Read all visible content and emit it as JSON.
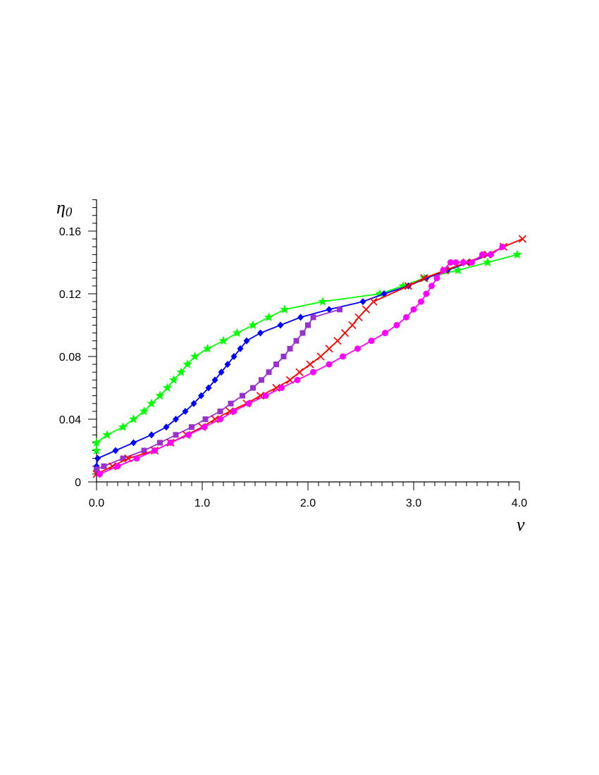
{
  "chart_data": {
    "type": "line",
    "xlabel": "ν",
    "ylabel": "η",
    "ylabel_sub": "0",
    "xlim": [
      0,
      4.0
    ],
    "ylim": [
      0,
      0.16
    ],
    "xticks": [
      {
        "value": 0.0,
        "label": "0.0"
      },
      {
        "value": 1.0,
        "label": "1.0"
      },
      {
        "value": 2.0,
        "label": "2.0"
      },
      {
        "value": 3.0,
        "label": "3.0"
      },
      {
        "value": 4.0,
        "label": "4.0"
      }
    ],
    "yticks": [
      {
        "value": 0,
        "label": "0"
      },
      {
        "value": 0.04,
        "label": "0.04"
      },
      {
        "value": 0.08,
        "label": "0.08"
      },
      {
        "value": 0.12,
        "label": "0.12"
      },
      {
        "value": 0.16,
        "label": "0.16"
      }
    ],
    "grid": false,
    "series": [
      {
        "color": "#00ff00",
        "marker": "star",
        "x": [
          0.0,
          0.0,
          0.1,
          0.25,
          0.35,
          0.45,
          0.52,
          0.6,
          0.67,
          0.73,
          0.8,
          0.86,
          0.93,
          1.05,
          1.2,
          1.33,
          1.48,
          1.63,
          1.78,
          2.14,
          2.68,
          2.9,
          3.1,
          3.42,
          3.7,
          3.98
        ],
        "y": [
          0.02,
          0.025,
          0.03,
          0.035,
          0.04,
          0.045,
          0.05,
          0.055,
          0.06,
          0.065,
          0.07,
          0.075,
          0.08,
          0.085,
          0.09,
          0.095,
          0.1,
          0.105,
          0.11,
          0.115,
          0.12,
          0.125,
          0.13,
          0.135,
          0.14,
          0.145
        ]
      },
      {
        "color": "#0000ff",
        "marker": "diamond",
        "x": [
          0.0,
          0.01,
          0.18,
          0.35,
          0.52,
          0.66,
          0.75,
          0.84,
          0.92,
          0.99,
          1.06,
          1.12,
          1.18,
          1.24,
          1.3,
          1.36,
          1.42,
          1.55,
          1.74,
          1.93,
          2.2,
          2.52,
          2.72,
          2.95,
          3.12,
          3.32,
          3.52,
          3.72
        ],
        "y": [
          0.01,
          0.015,
          0.02,
          0.025,
          0.03,
          0.035,
          0.04,
          0.045,
          0.05,
          0.055,
          0.06,
          0.065,
          0.07,
          0.075,
          0.08,
          0.085,
          0.09,
          0.095,
          0.1,
          0.105,
          0.11,
          0.115,
          0.12,
          0.125,
          0.13,
          0.135,
          0.14,
          0.145
        ]
      },
      {
        "color": "#9932cc",
        "marker": "square",
        "x": [
          0.0,
          0.07,
          0.25,
          0.45,
          0.6,
          0.75,
          0.9,
          1.03,
          1.17,
          1.27,
          1.38,
          1.48,
          1.56,
          1.63,
          1.7,
          1.77,
          1.83,
          1.89,
          1.95,
          2.0,
          2.05,
          2.3
        ],
        "y": [
          0.008,
          0.01,
          0.015,
          0.02,
          0.025,
          0.03,
          0.035,
          0.04,
          0.045,
          0.05,
          0.055,
          0.06,
          0.065,
          0.07,
          0.075,
          0.08,
          0.085,
          0.09,
          0.095,
          0.1,
          0.105,
          0.11
        ]
      },
      {
        "color": "#ff0000",
        "marker": "cross",
        "x": [
          0.0,
          0.15,
          0.3,
          0.55,
          0.7,
          0.85,
          1.0,
          1.12,
          1.26,
          1.42,
          1.55,
          1.7,
          1.83,
          1.92,
          2.02,
          2.12,
          2.2,
          2.28,
          2.35,
          2.42,
          2.48,
          2.55,
          2.62,
          2.95,
          3.1,
          3.3,
          3.5,
          3.7,
          3.85,
          4.03
        ],
        "y": [
          0.005,
          0.01,
          0.015,
          0.02,
          0.025,
          0.03,
          0.035,
          0.04,
          0.045,
          0.05,
          0.055,
          0.06,
          0.065,
          0.07,
          0.075,
          0.08,
          0.085,
          0.09,
          0.095,
          0.1,
          0.105,
          0.11,
          0.115,
          0.125,
          0.13,
          0.135,
          0.14,
          0.145,
          0.15,
          0.155
        ]
      },
      {
        "color": "#ff00ff",
        "marker": "circle",
        "x": [
          0.03,
          0.2,
          0.38,
          0.55,
          0.7,
          0.87,
          1.02,
          1.17,
          1.3,
          1.44,
          1.6,
          1.75,
          1.9,
          2.05,
          2.2,
          2.33,
          2.47,
          2.6,
          2.73,
          2.84,
          2.93,
          3.0,
          3.07,
          3.12,
          3.17,
          3.22,
          3.28,
          3.35,
          3.4,
          3.47,
          3.55,
          3.65,
          3.73,
          3.84
        ],
        "y": [
          0.005,
          0.01,
          0.015,
          0.02,
          0.025,
          0.03,
          0.035,
          0.04,
          0.045,
          0.05,
          0.055,
          0.06,
          0.065,
          0.07,
          0.075,
          0.08,
          0.085,
          0.09,
          0.095,
          0.1,
          0.105,
          0.11,
          0.115,
          0.12,
          0.125,
          0.13,
          0.135,
          0.14,
          0.14,
          0.14,
          0.14,
          0.145,
          0.145,
          0.15
        ]
      }
    ]
  }
}
